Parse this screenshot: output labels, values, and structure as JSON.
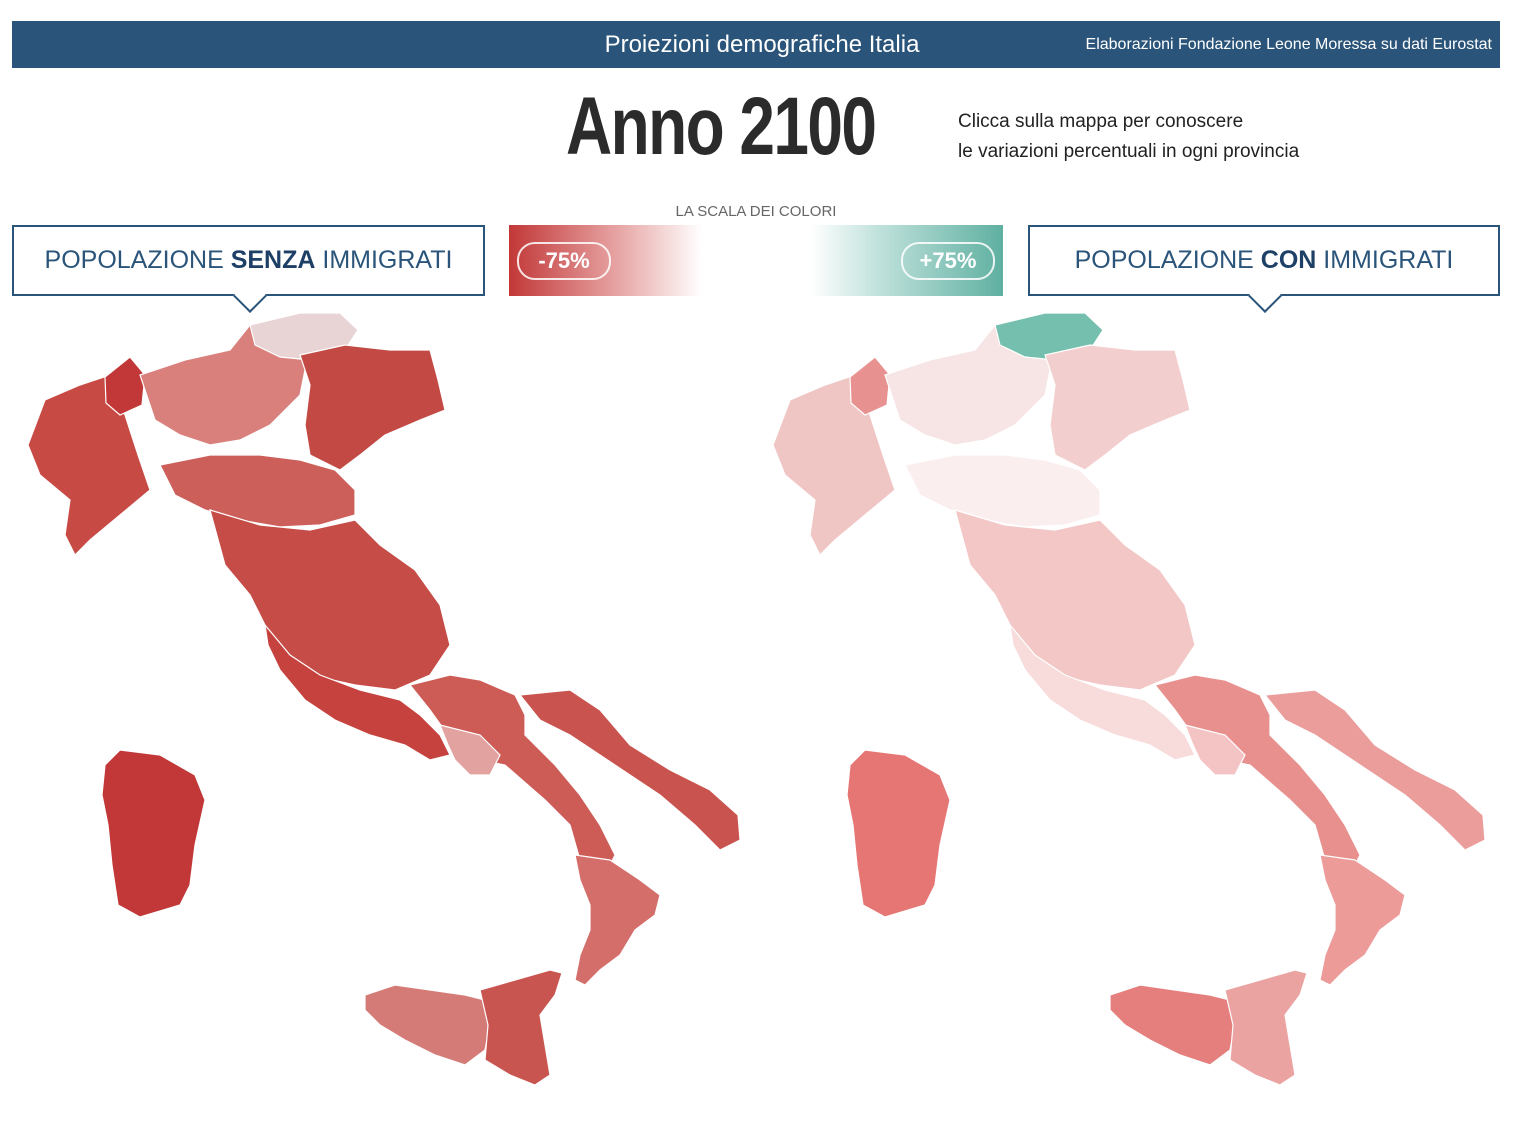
{
  "header": {
    "title": "Proiezioni demografiche Italia",
    "source": "Elaborazioni Fondazione Leone Moressa su dati Eurostat"
  },
  "year_title": "Anno 2100",
  "instructions": [
    "Clicca sulla mappa per conoscere",
    "le variazioni percentuali in ogni provincia"
  ],
  "color_scale": {
    "caption": "LA SCALA DEI COLORI",
    "min_label": "-75%",
    "max_label": "+75%",
    "min_color": "#c23838",
    "mid_color": "#ffffff",
    "max_color": "#5fb0a1"
  },
  "panels": {
    "left": {
      "prefix": "POPOLAZIONE ",
      "bold": "SENZA",
      "suffix": " IMMIGRATI"
    },
    "right": {
      "prefix": "POPOLAZIONE ",
      "bold": "CON",
      "suffix": " IMMIGRATI"
    }
  },
  "map_colors": {
    "left": {
      "north_west": "#c84a45",
      "aosta": "#c23838",
      "alpine_north": "#d9807c",
      "trentino": "#e8d4d4",
      "northeast": "#c34a44",
      "emilia": "#cd5f5b",
      "center": "#c54c47",
      "lazio": "#c6423e",
      "south": "#cd5c57",
      "puglia": "#c9534e",
      "calabria": "#d46e6a",
      "sicily_w": "#d57b77",
      "sicily_e": "#c95550",
      "sardinia": "#c23838",
      "campania_coast": "#e2a2a0"
    },
    "right": {
      "north_west": "#f0c6c5",
      "aosta": "#e79290",
      "alpine_north": "#f7e4e4",
      "trentino": "#74bfae",
      "northeast": "#f2cfce",
      "emilia": "#fbeeee",
      "center": "#f2c7c6",
      "lazio": "#f8dcdc",
      "south": "#e8908e",
      "puglia": "#ea9d9b",
      "calabria": "#ec9b99",
      "sicily_w": "#e47f7d",
      "sicily_e": "#eaa3a1",
      "sardinia": "#e57674",
      "campania_coast": "#f4c4c4"
    }
  }
}
